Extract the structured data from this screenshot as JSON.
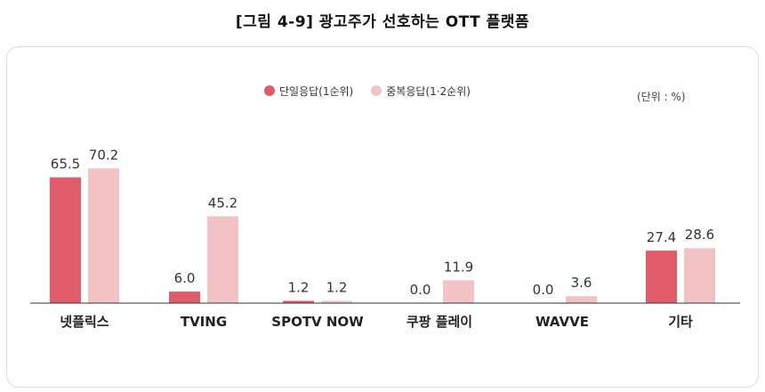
{
  "figure_title": "[그림 4-9] 광고주가 선호하는 OTT 플랫폼",
  "unit_label": "(단위 : %)",
  "colors": {
    "single": "#e05c6b",
    "multi": "#f3c2c4",
    "axis": "#333333",
    "panel_border": "#d9d9d9"
  },
  "chart_data": {
    "type": "bar",
    "categories": [
      "넷플릭스",
      "TVING",
      "SPOTV NOW",
      "쿠팡 플레이",
      "WAVVE",
      "기타"
    ],
    "series": [
      {
        "name": "단일응답(1순위)",
        "values": [
          65.5,
          6.0,
          1.2,
          0.0,
          0.0,
          27.4
        ],
        "labels": [
          "65.5",
          "6.0",
          "1.2",
          "0.0",
          "0.0",
          "27.4"
        ]
      },
      {
        "name": "중복응답(1·2순위)",
        "values": [
          70.2,
          45.2,
          1.2,
          11.9,
          3.6,
          28.6
        ],
        "labels": [
          "70.2",
          "45.2",
          "1.2",
          "11.9",
          "3.6",
          "28.6"
        ]
      }
    ],
    "ylim": [
      0,
      100
    ],
    "grid": false,
    "legend_position": "top-center"
  }
}
